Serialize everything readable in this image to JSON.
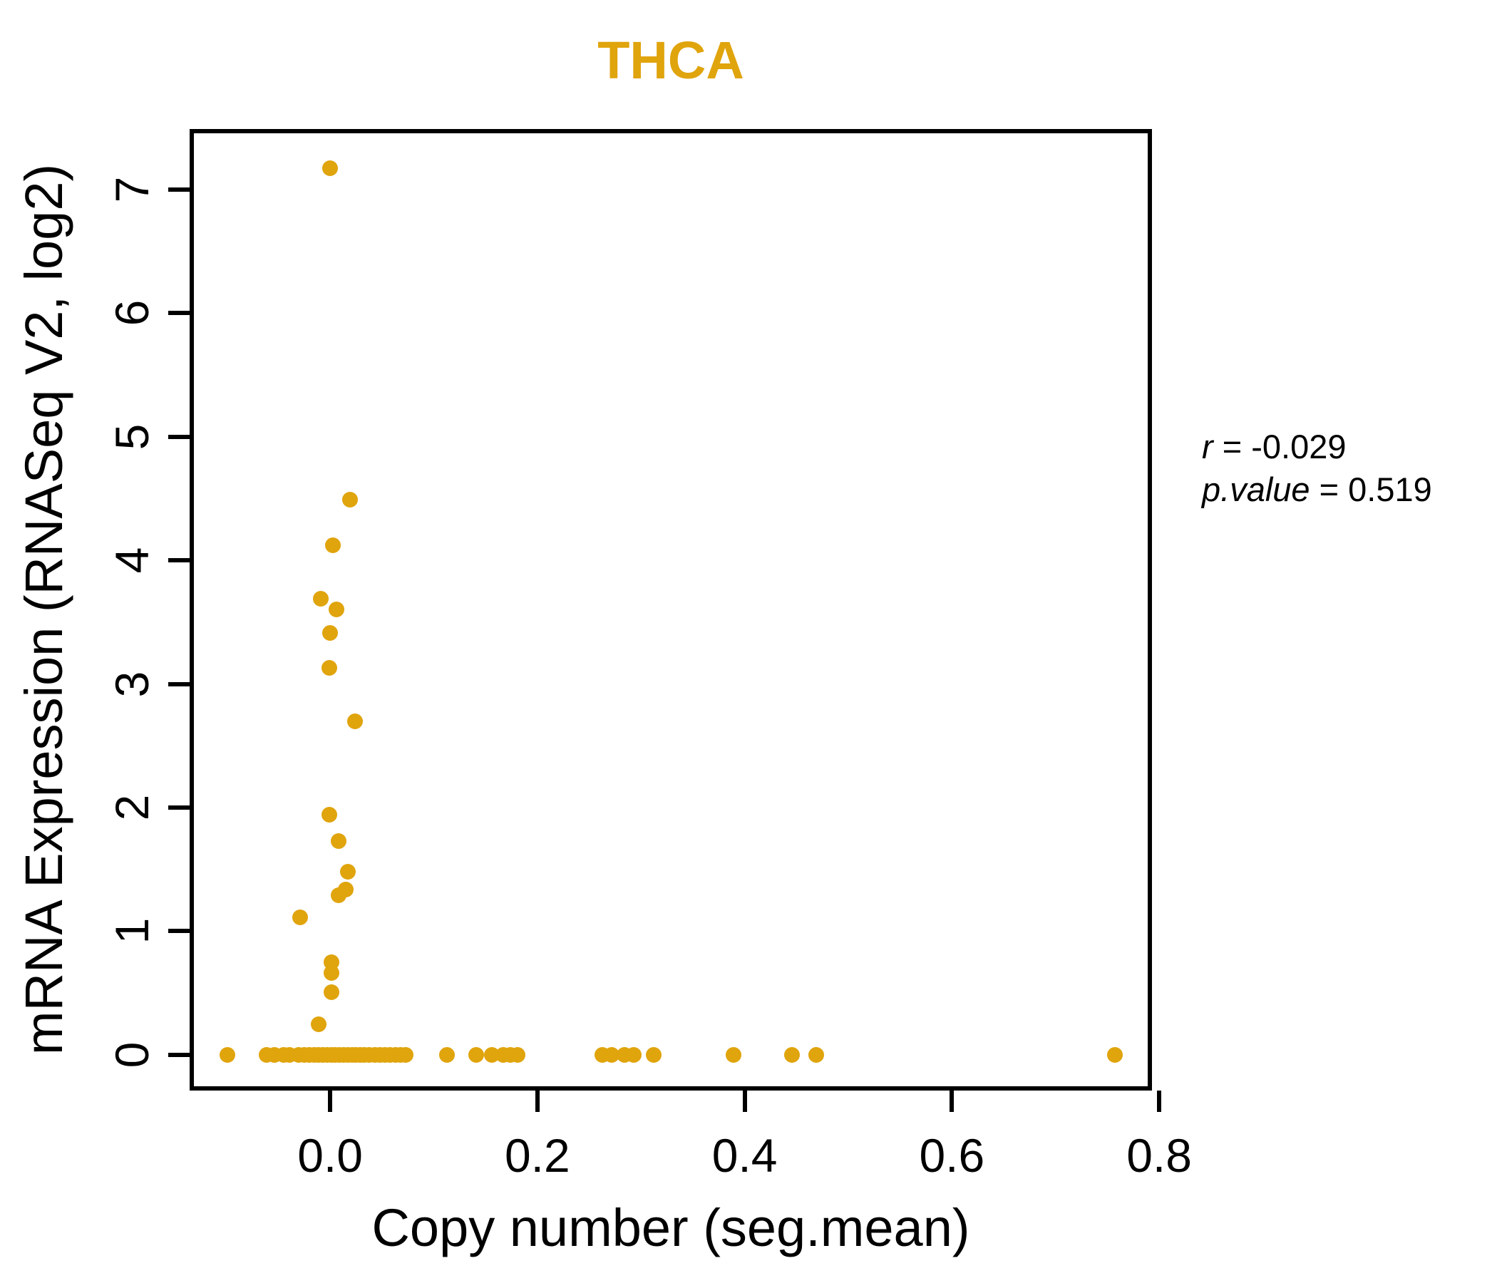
{
  "title": "THCA",
  "colors": {
    "title": "#E0A40C",
    "point": "#E0A40C",
    "axis": "#000000"
  },
  "annotation": {
    "r_var": "r",
    "r_rest": " = -0.029",
    "p_var": "p.value",
    "p_rest": " = 0.519"
  },
  "chart_data": {
    "type": "scatter",
    "title": "THCA",
    "xlabel": "Copy number (seg.mean)",
    "ylabel": "mRNA Expression (RNASeq V2, log2)",
    "r": -0.029,
    "p_value": 0.519,
    "grid": false,
    "legend": false,
    "xlim": [
      -0.1335,
      0.791
    ],
    "ylim": [
      -0.271,
      7.47
    ],
    "x_ticks": [
      0.0,
      0.2,
      0.4,
      0.6,
      0.8
    ],
    "x_tick_labels": [
      "0.0",
      "0.2",
      "0.4",
      "0.6",
      "0.8"
    ],
    "y_ticks": [
      0,
      1,
      2,
      3,
      4,
      5,
      6,
      7
    ],
    "y_tick_labels": [
      "0",
      "1",
      "2",
      "3",
      "4",
      "5",
      "6",
      "7"
    ],
    "points": [
      [
        0.0,
        7.17
      ],
      [
        0.019,
        4.49
      ],
      [
        0.003,
        4.12
      ],
      [
        -0.009,
        3.69
      ],
      [
        0.006,
        3.6
      ],
      [
        0.0,
        3.41
      ],
      [
        -0.001,
        3.13
      ],
      [
        0.024,
        2.7
      ],
      [
        -0.001,
        1.94
      ],
      [
        0.008,
        1.73
      ],
      [
        0.017,
        1.48
      ],
      [
        0.015,
        1.34
      ],
      [
        0.008,
        1.29
      ],
      [
        -0.029,
        1.11
      ],
      [
        0.001,
        0.75
      ],
      [
        0.001,
        0.66
      ],
      [
        0.001,
        0.51
      ],
      [
        -0.011,
        0.25
      ],
      [
        -0.099,
        0
      ],
      [
        -0.061,
        0
      ],
      [
        -0.054,
        0
      ],
      [
        -0.045,
        0
      ],
      [
        -0.039,
        0
      ],
      [
        -0.03,
        0
      ],
      [
        -0.025,
        0
      ],
      [
        -0.02,
        0
      ],
      [
        -0.015,
        0
      ],
      [
        -0.011,
        0
      ],
      [
        -0.007,
        0
      ],
      [
        -0.003,
        0
      ],
      [
        0.001,
        0
      ],
      [
        0.005,
        0
      ],
      [
        0.009,
        0
      ],
      [
        0.013,
        0
      ],
      [
        0.017,
        0
      ],
      [
        0.021,
        0
      ],
      [
        0.025,
        0
      ],
      [
        0.029,
        0
      ],
      [
        0.033,
        0
      ],
      [
        0.038,
        0
      ],
      [
        0.043,
        0
      ],
      [
        0.048,
        0
      ],
      [
        0.053,
        0
      ],
      [
        0.058,
        0
      ],
      [
        0.063,
        0
      ],
      [
        0.068,
        0
      ],
      [
        0.073,
        0
      ],
      [
        0.113,
        0
      ],
      [
        0.141,
        0
      ],
      [
        0.156,
        0
      ],
      [
        0.167,
        0
      ],
      [
        0.174,
        0
      ],
      [
        0.181,
        0
      ],
      [
        0.263,
        0
      ],
      [
        0.272,
        0
      ],
      [
        0.284,
        0
      ],
      [
        0.293,
        0
      ],
      [
        0.312,
        0
      ],
      [
        0.389,
        0
      ],
      [
        0.446,
        0
      ],
      [
        0.469,
        0
      ],
      [
        0.757,
        0
      ]
    ]
  }
}
